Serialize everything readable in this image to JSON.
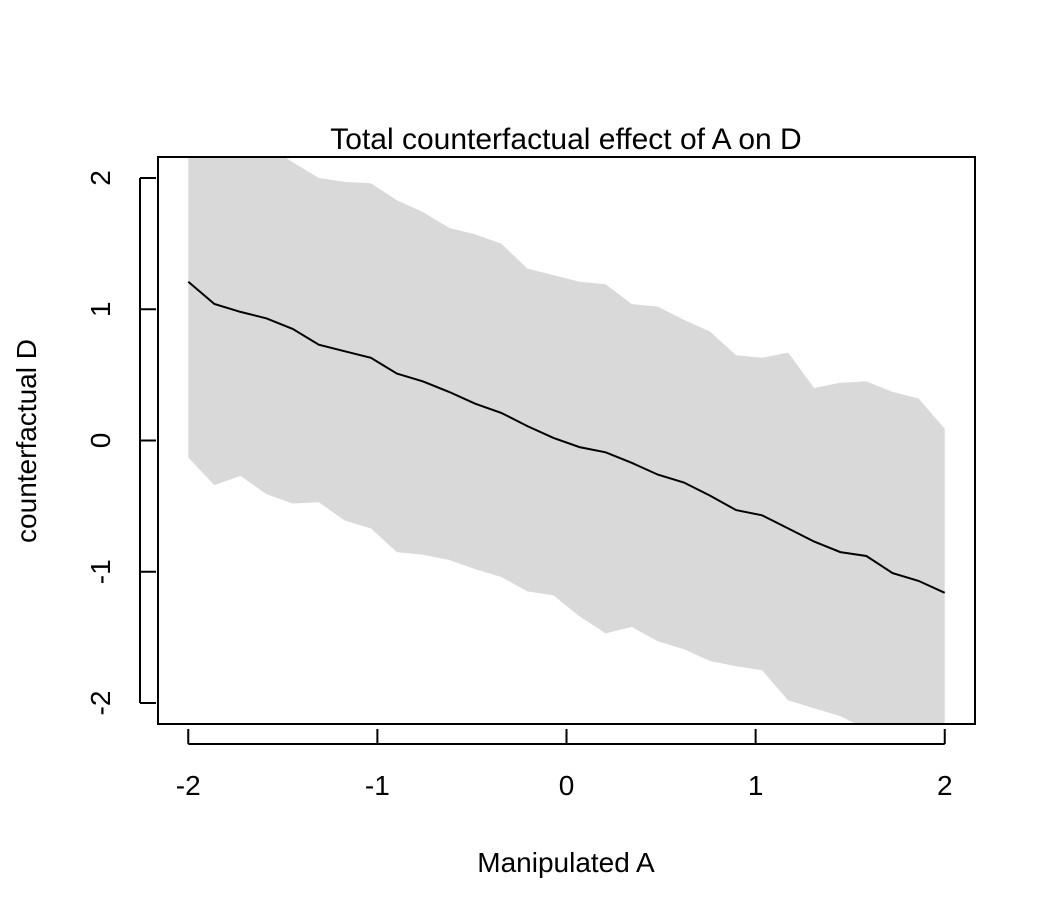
{
  "chart_data": {
    "type": "line",
    "title": "Total counterfactual effect of A on D",
    "xlabel": "Manipulated A",
    "ylabel": "counterfactual D",
    "xlim": [
      -2.16,
      2.16
    ],
    "ylim": [
      -2.16,
      2.16
    ],
    "xticks": [
      -2,
      -1,
      0,
      1,
      2
    ],
    "yticks": [
      -2,
      -1,
      0,
      1,
      2
    ],
    "x_tick_labels": [
      "-2",
      "-1",
      "0",
      "1",
      "2"
    ],
    "y_tick_labels": [
      "-2",
      "-1",
      "0",
      "1",
      "2"
    ],
    "x": [
      -2.0,
      -1.862,
      -1.724,
      -1.586,
      -1.448,
      -1.31,
      -1.172,
      -1.034,
      -0.897,
      -0.759,
      -0.621,
      -0.483,
      -0.345,
      -0.207,
      -0.069,
      0.069,
      0.207,
      0.345,
      0.483,
      0.621,
      0.759,
      0.897,
      1.034,
      1.172,
      1.31,
      1.448,
      1.586,
      1.724,
      1.862,
      2.0
    ],
    "series": [
      {
        "values": [
          1.21,
          1.04,
          0.98,
          0.93,
          0.85,
          0.73,
          0.68,
          0.63,
          0.51,
          0.45,
          0.37,
          0.28,
          0.21,
          0.11,
          0.02,
          -0.05,
          -0.09,
          -0.17,
          -0.26,
          -0.32,
          -0.42,
          -0.53,
          -0.57,
          -0.67,
          -0.77,
          -0.85,
          -0.88,
          -1.01,
          -1.07,
          -1.16
        ]
      }
    ],
    "interval": {
      "upper": [
        2.8,
        2.6,
        2.4,
        2.25,
        2.12,
        2.0,
        1.97,
        1.96,
        1.83,
        1.74,
        1.62,
        1.57,
        1.5,
        1.31,
        1.26,
        1.21,
        1.19,
        1.04,
        1.02,
        0.92,
        0.83,
        0.65,
        0.63,
        0.67,
        0.4,
        0.44,
        0.45,
        0.37,
        0.32,
        0.09
      ],
      "lower": [
        -0.13,
        -0.34,
        -0.27,
        -0.41,
        -0.48,
        -0.47,
        -0.61,
        -0.67,
        -0.85,
        -0.87,
        -0.91,
        -0.98,
        -1.04,
        -1.15,
        -1.18,
        -1.34,
        -1.47,
        -1.42,
        -1.53,
        -1.59,
        -1.68,
        -1.72,
        -1.75,
        -1.98,
        -2.04,
        -2.1,
        -2.2,
        -2.4,
        -2.6,
        -2.8
      ]
    },
    "colors": {
      "band": "#d9d9d9",
      "line": "#000000",
      "frame": "#000000"
    },
    "grid": false,
    "legend": "none"
  }
}
